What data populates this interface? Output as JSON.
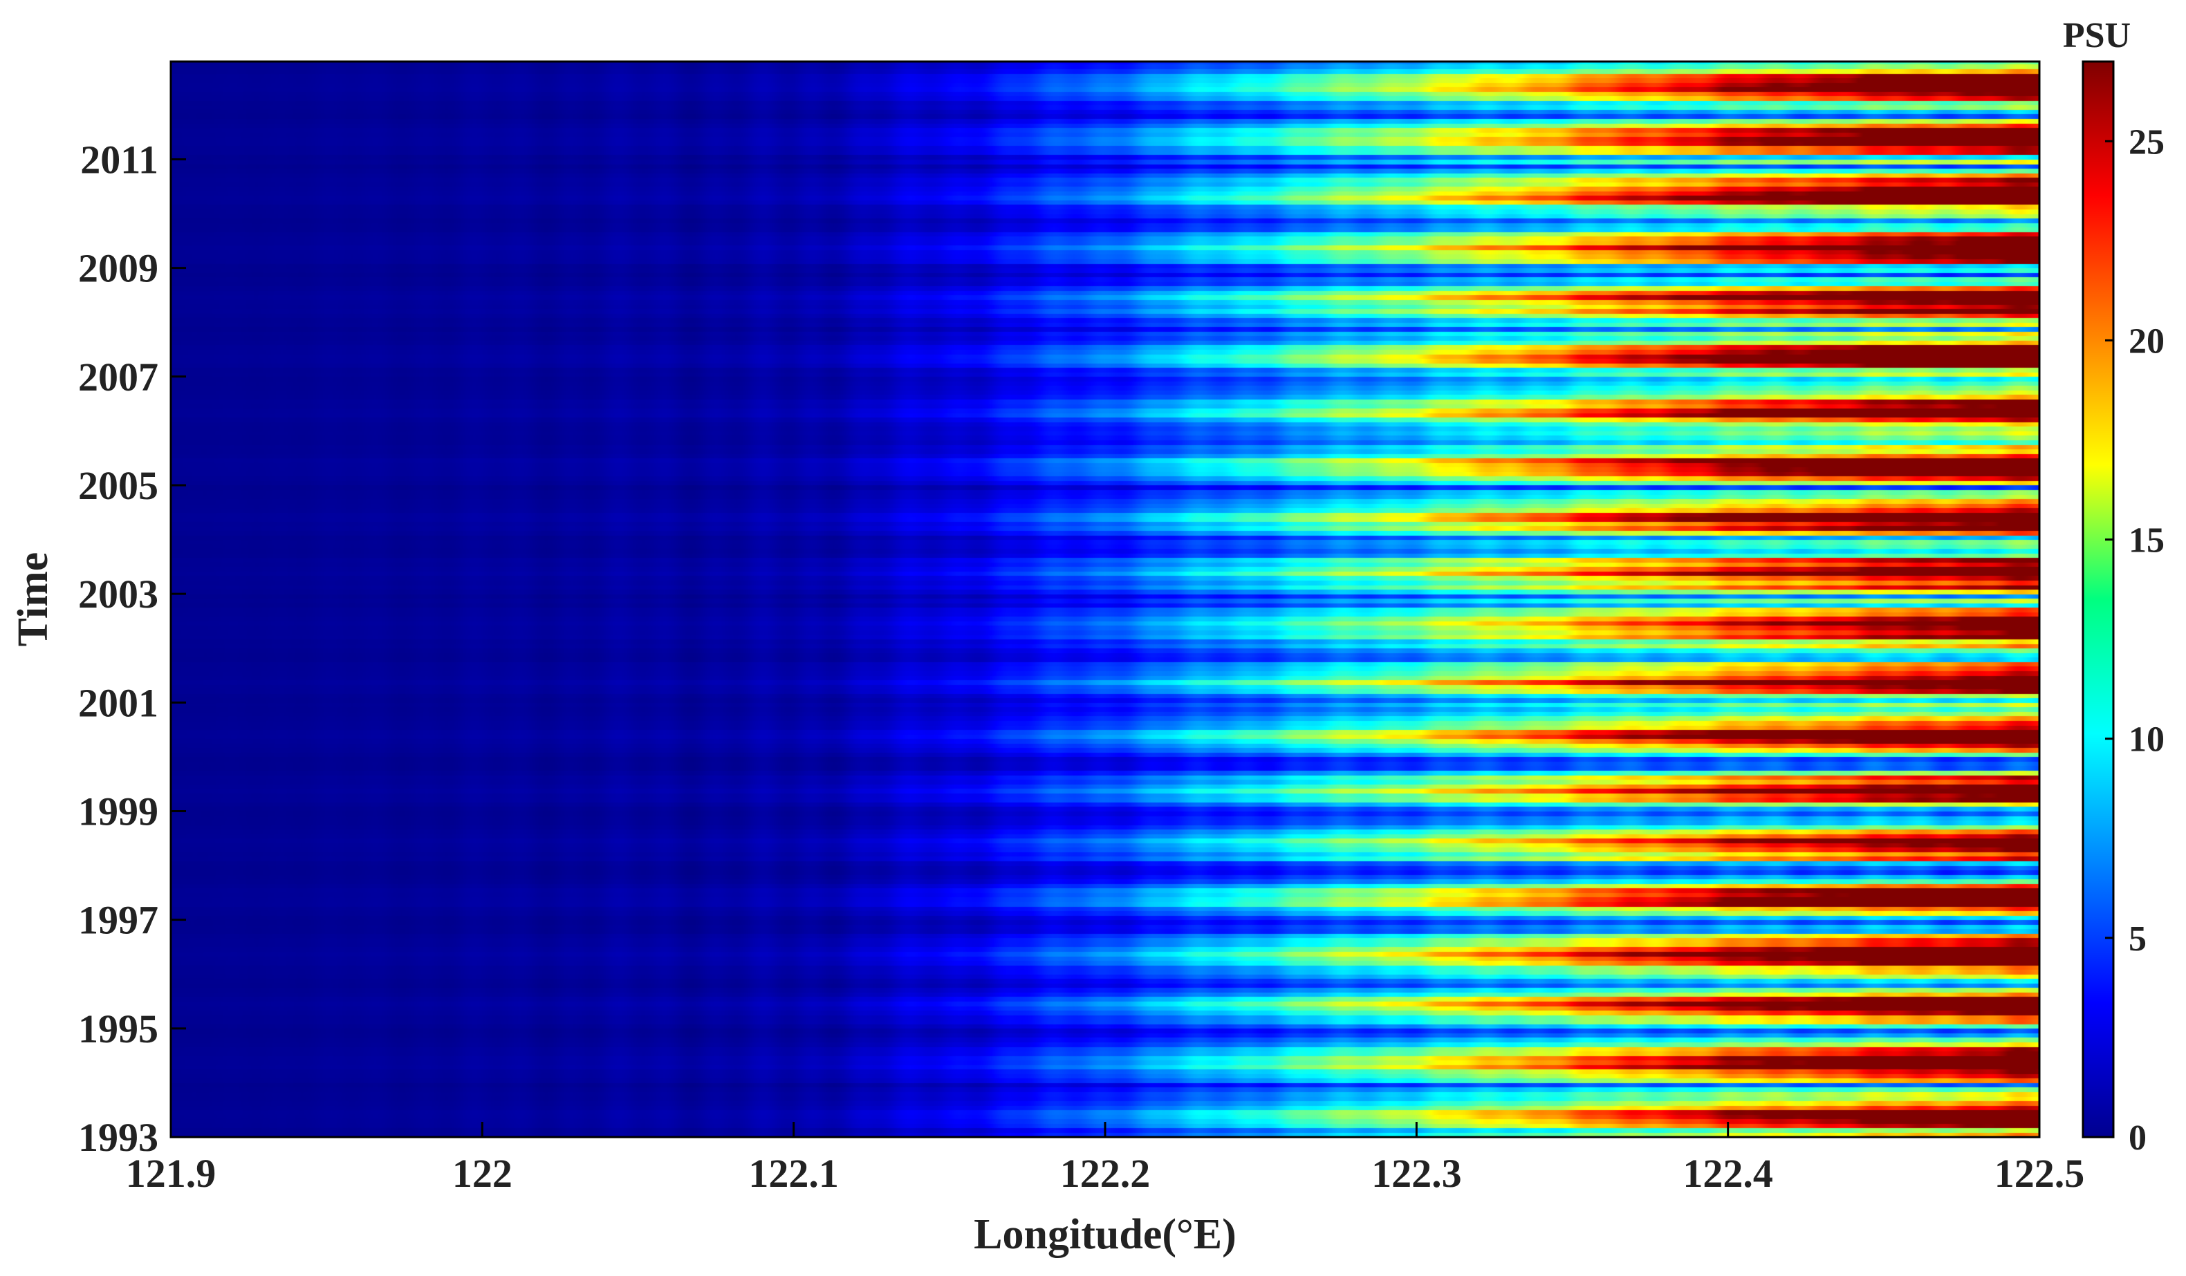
{
  "chart_data": {
    "type": "heatmap",
    "title": "",
    "xlabel": "Longitude(°E)",
    "ylabel": "Time",
    "xlim": [
      121.9,
      122.5
    ],
    "ylim": [
      1993,
      2012.8
    ],
    "x_ticks": [
      121.9,
      122.0,
      122.1,
      122.2,
      122.3,
      122.4,
      122.5
    ],
    "x_tick_labels": [
      "121.9",
      "122",
      "122.1",
      "122.2",
      "122.3",
      "122.4",
      "122.5"
    ],
    "y_ticks": [
      1993,
      1995,
      1997,
      1999,
      2001,
      2003,
      2005,
      2007,
      2009,
      2011
    ],
    "y_tick_labels": [
      "1993",
      "1995",
      "1997",
      "1999",
      "2001",
      "2003",
      "2005",
      "2007",
      "2009",
      "2011"
    ],
    "colorbar": {
      "label": "PSU",
      "range": [
        0,
        27
      ],
      "ticks": [
        0,
        5,
        10,
        15,
        20,
        25
      ],
      "tick_labels": [
        "0",
        "5",
        "10",
        "15",
        "20",
        "25"
      ],
      "colormap": "jet"
    },
    "value_profile_by_longitude": {
      "longitude": [
        121.9,
        122.0,
        122.1,
        122.15,
        122.2,
        122.25,
        122.3,
        122.35,
        122.4,
        122.45,
        122.5
      ],
      "salinity": [
        0.5,
        0.7,
        1.0,
        2.5,
        5.0,
        8.0,
        11.0,
        14.0,
        17.0,
        19.5,
        22.0
      ]
    },
    "grid": false,
    "description_values_note": "Salinity rises from ~0 PSU at 121.9°E to ~20-27 PSU near 122.5°E, with monthly banding in time."
  }
}
